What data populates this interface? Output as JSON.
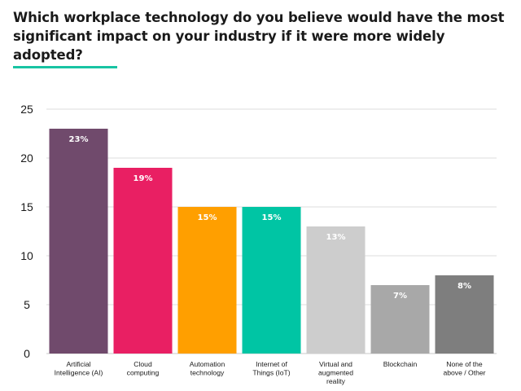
{
  "chart_data": {
    "type": "bar",
    "title": "Which workplace technology do you believe would have the most significant impact on your industry if it were more widely adopted?",
    "xlabel": "",
    "ylabel": "",
    "ylim": [
      0,
      25
    ],
    "yticks": [
      "0",
      "5",
      "10",
      "15",
      "20",
      "25"
    ],
    "grid": true,
    "categories": [
      [
        "Artificial",
        "Intelligence (AI)"
      ],
      [
        "Cloud",
        "computing"
      ],
      [
        "Automation",
        "technology"
      ],
      [
        "Internet of",
        "Things (IoT)"
      ],
      [
        "Virtual and",
        "augmented",
        "reality"
      ],
      [
        "Blockchain"
      ],
      [
        "None of the",
        "above / Other"
      ]
    ],
    "values": [
      23,
      19,
      15,
      15,
      13,
      7,
      8
    ],
    "data_labels": [
      "23%",
      "19%",
      "15%",
      "15%",
      "13%",
      "7%",
      "8%"
    ],
    "colors": [
      "#704a6c",
      "#e91f63",
      "#ff9f00",
      "#00c5a4",
      "#cdcdcd",
      "#a8a8a8",
      "#7e7e7e"
    ],
    "accent_color": "#18c4a3"
  }
}
